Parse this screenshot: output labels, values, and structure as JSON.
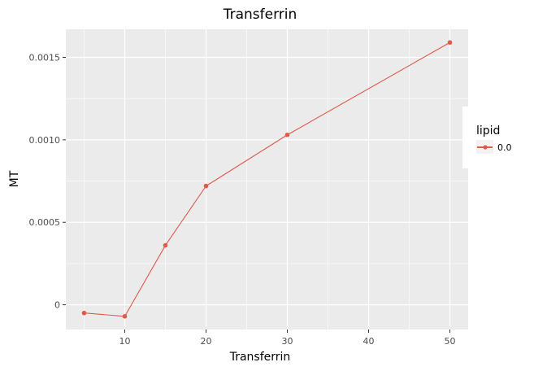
{
  "chart_data": {
    "type": "line",
    "title": "Transferrin",
    "xlabel": "Transferrin",
    "ylabel": "MT",
    "x": [
      5,
      10,
      15,
      20,
      30,
      50
    ],
    "series": [
      {
        "name": "0.0",
        "values": [
          -5e-05,
          -7e-05,
          0.00036,
          0.00072,
          0.00103,
          0.00159
        ]
      }
    ],
    "xlim": [
      2.75,
      52.25
    ],
    "ylim": [
      -0.00015,
      0.00167
    ],
    "xticks": [
      10,
      20,
      30,
      40,
      50
    ],
    "xtick_labels": [
      "10",
      "20",
      "30",
      "40",
      "50"
    ],
    "yticks": [
      0,
      0.0005,
      0.001,
      0.0015
    ],
    "ytick_labels": [
      "0",
      "0.0005",
      "0.0010",
      "0.0015"
    ],
    "grid": true,
    "legend": {
      "title": "lipid",
      "placement": "right"
    },
    "colors": {
      "series": "#e05a4a",
      "panel": "#ebebeb",
      "grid": "#ffffff"
    }
  }
}
